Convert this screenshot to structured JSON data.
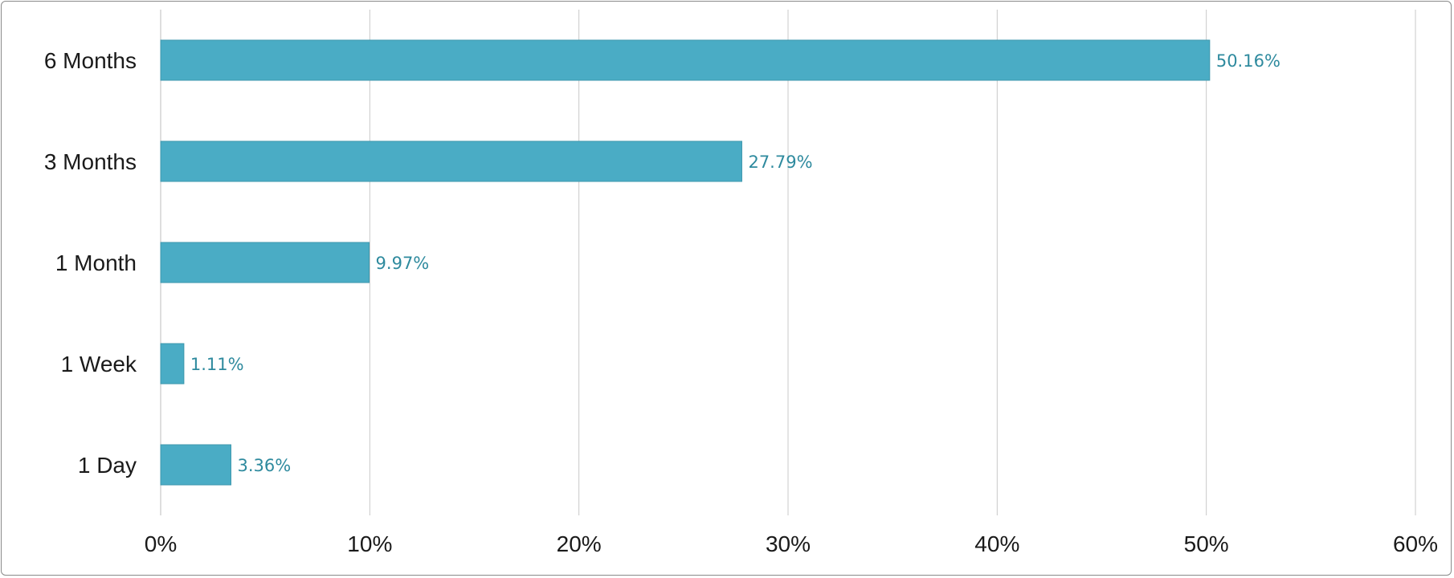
{
  "chart_data": {
    "type": "bar",
    "orientation": "horizontal",
    "title": "",
    "xlabel": "",
    "ylabel": "",
    "categories": [
      "6 Months",
      "3 Months",
      "1 Month",
      "1 Week",
      "1 Day"
    ],
    "values": [
      50.16,
      27.79,
      9.97,
      1.11,
      3.36
    ],
    "value_labels": [
      "50.16%",
      "27.79%",
      "9.97%",
      "1.11%",
      "3.36%"
    ],
    "xlim": [
      0,
      60
    ],
    "xticks": [
      0,
      10,
      20,
      30,
      40,
      50,
      60
    ],
    "xtick_labels": [
      "0%",
      "10%",
      "20%",
      "30%",
      "40%",
      "50%",
      "60%"
    ],
    "grid": "vertical",
    "legend": "none",
    "colors": {
      "bar": "#4aacc5",
      "bar_edge": "#3d97ad",
      "data_label": "#2e8a9e",
      "grid": "#c8c8c8",
      "axis": "#bdbdbd"
    }
  }
}
